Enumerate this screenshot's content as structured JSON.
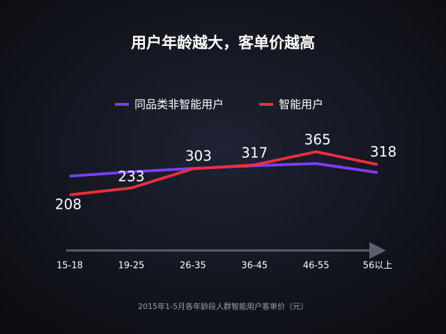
{
  "chart_data": {
    "type": "line",
    "title": "用户年龄越大，客单价越高",
    "categories": [
      "15-18",
      "19-25",
      "26-35",
      "36-45",
      "46-55",
      "56以上"
    ],
    "series": [
      {
        "name": "同品类非智能用户",
        "color": "#7b3ff2",
        "values": [
          276,
          292,
          304,
          314,
          322,
          289
        ]
      },
      {
        "name": "智能用户",
        "color": "#e8303f",
        "values": [
          208,
          233,
          303,
          317,
          365,
          318
        ]
      }
    ],
    "label_series": 1,
    "caption": "2015年1-5月各年龄段人群智能用户客单价（元）"
  }
}
